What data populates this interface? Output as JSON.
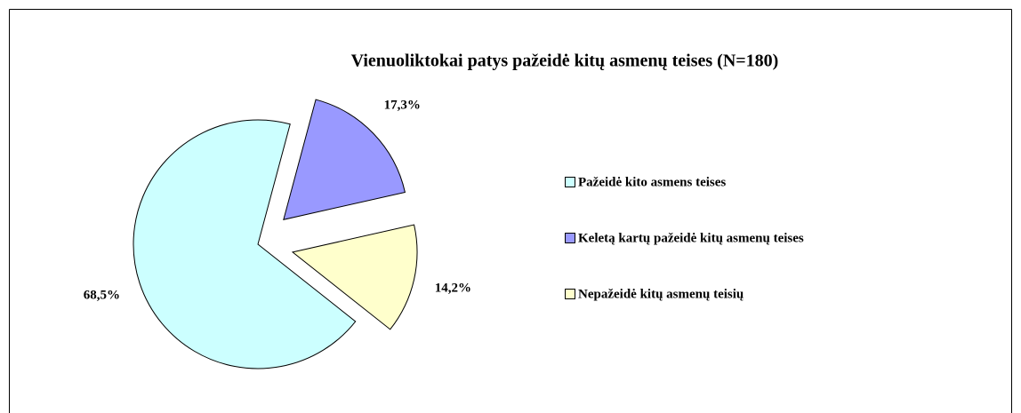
{
  "chart_data": {
    "type": "pie",
    "title": "Vienuoliktokai patys pažeidė kitų asmenų teises (N=180)",
    "categories": [
      "Pažeidė kito asmens teises",
      "Keletą kartų pažeidė kitų asmenų teises",
      "Nepažeidė kitų asmenų teisių"
    ],
    "values": [
      68.5,
      17.3,
      14.2
    ],
    "value_labels": [
      "68,5%",
      "17,3%",
      "14,2%"
    ],
    "colors": [
      "#ccffff",
      "#9999ff",
      "#ffffcc"
    ],
    "legend": "right"
  }
}
